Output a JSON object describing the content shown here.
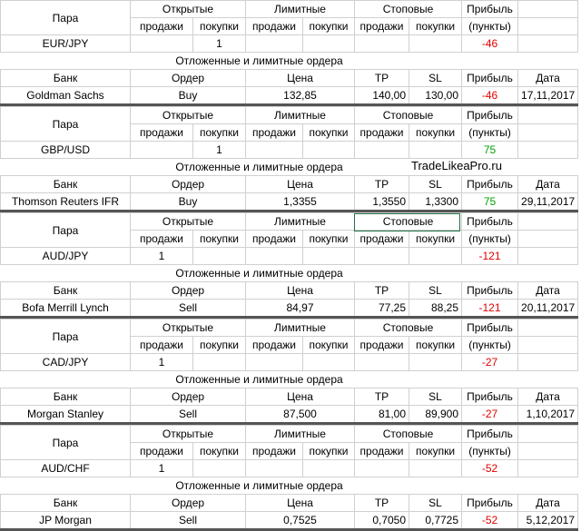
{
  "headers": {
    "pair": "Пара",
    "open": "Открытые",
    "limit": "Лимитные",
    "stop": "Стоповые",
    "profit": "Прибыль",
    "sell": "продажи",
    "buy": "покупки",
    "points": "(пункты)",
    "pending": "Отложенные и лимитные ордера",
    "bank": "Банк",
    "order": "Ордер",
    "price": "Цена",
    "tp": "TP",
    "sl": "SL",
    "date": "Дата"
  },
  "watermark": "TradeLikeaPro.ru",
  "blocks": [
    {
      "pair": "EUR/JPY",
      "open_buy": 1,
      "profit_points": -46,
      "bank": "Goldman Sachs",
      "order": "Buy",
      "price": "132,85",
      "tp": "140,00",
      "sl": "130,00",
      "profit": -46,
      "date": "17,11,2017"
    },
    {
      "pair": "GBP/USD",
      "open_buy": 1,
      "profit_points": 75,
      "bank": "Thomson Reuters IFR",
      "order": "Buy",
      "price": "1,3355",
      "tp": "1,3550",
      "sl": "1,3300",
      "profit": 75,
      "date": "29,11,2017"
    },
    {
      "pair": "AUD/JPY",
      "open_sell": 1,
      "profit_points": -121,
      "bank": "Bofa Merrill Lynch",
      "order": "Sell",
      "price": "84,97",
      "tp": "77,25",
      "sl": "88,25",
      "profit": -121,
      "date": "20,11,2017"
    },
    {
      "pair": "CAD/JPY",
      "open_sell": 1,
      "profit_points": -27,
      "bank": "Morgan Stanley",
      "order": "Sell",
      "price": "87,500",
      "tp": "81,00",
      "sl": "89,900",
      "profit": -27,
      "date": "1,10,2017"
    },
    {
      "pair": "AUD/CHF",
      "open_sell": 1,
      "profit_points": -52,
      "bank": "JP Morgan",
      "order": "Sell",
      "price": "0,7525",
      "tp": "0,7050",
      "sl": "0,7725",
      "profit": -52,
      "date": "5,12,2017"
    }
  ]
}
